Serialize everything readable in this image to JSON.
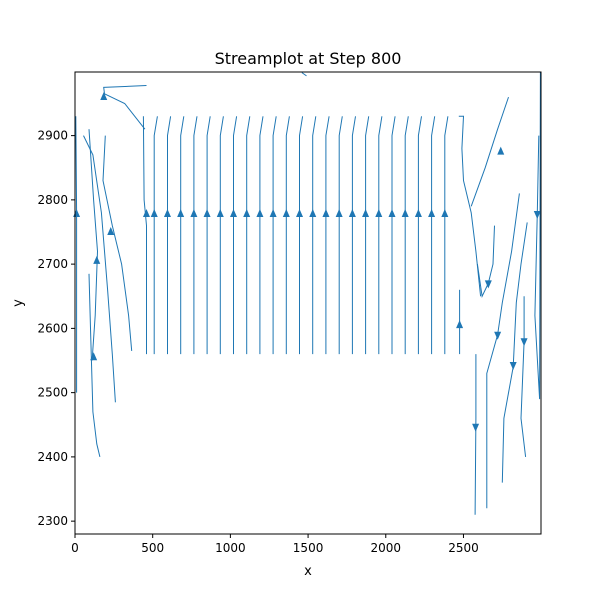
{
  "chart_data": {
    "type": "streamplot",
    "title": "Streamplot at Step 800",
    "xlabel": "x",
    "ylabel": "y",
    "xlim": [
      0,
      2999
    ],
    "ylim": [
      2280,
      2999
    ],
    "x_ticks": [
      0,
      500,
      1000,
      1500,
      2000,
      2500
    ],
    "x_tick_labels": [
      "0",
      "500",
      "1000",
      "1500",
      "2000",
      "2500"
    ],
    "y_ticks": [
      2300,
      2400,
      2500,
      2600,
      2700,
      2800,
      2900
    ],
    "y_tick_labels": [
      "2300",
      "2400",
      "2500",
      "2600",
      "2700",
      "2800",
      "2900"
    ],
    "grid": false,
    "line_color": "#1f77b4",
    "streamlines": [
      {
        "points": [
          [
            460,
            2560
          ],
          [
            460,
            2760
          ],
          [
            445,
            2800
          ],
          [
            440,
            2930
          ]
        ],
        "arrow_at": [
          460,
          2778
        ],
        "dir": "up"
      },
      {
        "points": [
          [
            510,
            2560
          ],
          [
            510,
            2900
          ],
          [
            530,
            2930
          ]
        ],
        "arrow_at": [
          510,
          2778
        ],
        "dir": "up"
      },
      {
        "points": [
          [
            595,
            2560
          ],
          [
            595,
            2900
          ],
          [
            615,
            2930
          ]
        ],
        "arrow_at": [
          595,
          2778
        ],
        "dir": "up"
      },
      {
        "points": [
          [
            680,
            2560
          ],
          [
            680,
            2900
          ],
          [
            700,
            2930
          ]
        ],
        "arrow_at": [
          680,
          2778
        ],
        "dir": "up"
      },
      {
        "points": [
          [
            765,
            2560
          ],
          [
            765,
            2900
          ],
          [
            785,
            2930
          ]
        ],
        "arrow_at": [
          765,
          2778
        ],
        "dir": "up"
      },
      {
        "points": [
          [
            850,
            2560
          ],
          [
            850,
            2900
          ],
          [
            870,
            2930
          ]
        ],
        "arrow_at": [
          850,
          2778
        ],
        "dir": "up"
      },
      {
        "points": [
          [
            935,
            2560
          ],
          [
            935,
            2900
          ],
          [
            955,
            2930
          ]
        ],
        "arrow_at": [
          935,
          2778
        ],
        "dir": "up"
      },
      {
        "points": [
          [
            1020,
            2560
          ],
          [
            1020,
            2900
          ],
          [
            1040,
            2930
          ]
        ],
        "arrow_at": [
          1020,
          2778
        ],
        "dir": "up"
      },
      {
        "points": [
          [
            1105,
            2560
          ],
          [
            1105,
            2900
          ],
          [
            1125,
            2930
          ]
        ],
        "arrow_at": [
          1105,
          2778
        ],
        "dir": "up"
      },
      {
        "points": [
          [
            1190,
            2560
          ],
          [
            1190,
            2900
          ],
          [
            1210,
            2930
          ]
        ],
        "arrow_at": [
          1190,
          2778
        ],
        "dir": "up"
      },
      {
        "points": [
          [
            1275,
            2560
          ],
          [
            1275,
            2900
          ],
          [
            1295,
            2930
          ]
        ],
        "arrow_at": [
          1275,
          2778
        ],
        "dir": "up"
      },
      {
        "points": [
          [
            1360,
            2560
          ],
          [
            1360,
            2900
          ],
          [
            1380,
            2930
          ]
        ],
        "arrow_at": [
          1360,
          2778
        ],
        "dir": "up"
      },
      {
        "points": [
          [
            1445,
            2560
          ],
          [
            1445,
            2900
          ],
          [
            1465,
            2930
          ]
        ],
        "arrow_at": [
          1445,
          2778
        ],
        "dir": "up"
      },
      {
        "points": [
          [
            1530,
            2560
          ],
          [
            1530,
            2900
          ],
          [
            1550,
            2930
          ]
        ],
        "arrow_at": [
          1530,
          2778
        ],
        "dir": "up"
      },
      {
        "points": [
          [
            1615,
            2560
          ],
          [
            1615,
            2900
          ],
          [
            1635,
            2930
          ]
        ],
        "arrow_at": [
          1615,
          2778
        ],
        "dir": "up"
      },
      {
        "points": [
          [
            1700,
            2560
          ],
          [
            1700,
            2900
          ],
          [
            1720,
            2930
          ]
        ],
        "arrow_at": [
          1700,
          2778
        ],
        "dir": "up"
      },
      {
        "points": [
          [
            1785,
            2560
          ],
          [
            1785,
            2900
          ],
          [
            1805,
            2930
          ]
        ],
        "arrow_at": [
          1785,
          2778
        ],
        "dir": "up"
      },
      {
        "points": [
          [
            1870,
            2560
          ],
          [
            1870,
            2900
          ],
          [
            1890,
            2930
          ]
        ],
        "arrow_at": [
          1870,
          2778
        ],
        "dir": "up"
      },
      {
        "points": [
          [
            1955,
            2560
          ],
          [
            1955,
            2900
          ],
          [
            1975,
            2930
          ]
        ],
        "arrow_at": [
          1955,
          2778
        ],
        "dir": "up"
      },
      {
        "points": [
          [
            2040,
            2560
          ],
          [
            2040,
            2900
          ],
          [
            2060,
            2930
          ]
        ],
        "arrow_at": [
          2040,
          2778
        ],
        "dir": "up"
      },
      {
        "points": [
          [
            2125,
            2560
          ],
          [
            2125,
            2900
          ],
          [
            2145,
            2930
          ]
        ],
        "arrow_at": [
          2125,
          2778
        ],
        "dir": "up"
      },
      {
        "points": [
          [
            2210,
            2560
          ],
          [
            2210,
            2900
          ],
          [
            2230,
            2930
          ]
        ],
        "arrow_at": [
          2210,
          2778
        ],
        "dir": "up"
      },
      {
        "points": [
          [
            2295,
            2560
          ],
          [
            2295,
            2900
          ],
          [
            2315,
            2930
          ]
        ],
        "arrow_at": [
          2295,
          2778
        ],
        "dir": "up"
      },
      {
        "points": [
          [
            2380,
            2560
          ],
          [
            2380,
            2900
          ],
          [
            2400,
            2930
          ]
        ],
        "arrow_at": [
          2380,
          2778
        ],
        "dir": "up"
      },
      {
        "points": [
          [
            2475,
            2560
          ],
          [
            2475,
            2660
          ]
        ],
        "arrow_at": [
          2475,
          2605
        ],
        "dir": "up"
      },
      {
        "points": [
          [
            2470,
            2930
          ],
          [
            2500,
            2930
          ],
          [
            2490,
            2880
          ],
          [
            2500,
            2830
          ],
          [
            2550,
            2780
          ],
          [
            2580,
            2720
          ],
          [
            2610,
            2650
          ]
        ],
        "arrow_at": [
          2610,
          2650
        ],
        "dir": "none"
      },
      {
        "points": [
          [
            10,
            2500
          ],
          [
            10,
            2780
          ],
          [
            5,
            2930
          ]
        ],
        "arrow_at": [
          10,
          2778
        ],
        "dir": "up"
      },
      {
        "points": [
          [
            90,
            2685
          ],
          [
            100,
            2600
          ],
          [
            115,
            2470
          ],
          [
            140,
            2420
          ],
          [
            160,
            2400
          ]
        ],
        "arrow_at": [
          120,
          2555
        ],
        "dir": "up"
      },
      {
        "points": [
          [
            110,
            2550
          ],
          [
            130,
            2620
          ],
          [
            145,
            2720
          ],
          [
            120,
            2800
          ],
          [
            90,
            2910
          ]
        ],
        "arrow_at": [
          140,
          2705
        ],
        "dir": "up"
      },
      {
        "points": [
          [
            260,
            2485
          ],
          [
            240,
            2560
          ],
          [
            210,
            2660
          ],
          [
            170,
            2780
          ],
          [
            115,
            2870
          ],
          [
            55,
            2900
          ]
        ],
        "arrow_at": [
          230,
          2750
        ],
        "dir": "up"
      },
      {
        "points": [
          [
            365,
            2565
          ],
          [
            345,
            2620
          ],
          [
            300,
            2700
          ],
          [
            240,
            2760
          ],
          [
            180,
            2830
          ],
          [
            195,
            2900
          ]
        ],
        "arrow_at": [
          200,
          2810
        ],
        "dir": "none"
      },
      {
        "points": [
          [
            450,
            2910
          ],
          [
            320,
            2950
          ],
          [
            190,
            2965
          ],
          [
            185,
            2975
          ],
          [
            460,
            2978
          ]
        ],
        "arrow_at": [
          185,
          2960
        ],
        "dir": "up"
      },
      {
        "points": [
          [
            1490,
            2993
          ],
          [
            1460,
            2998
          ]
        ],
        "arrow_at": [
          1490,
          2993
        ],
        "dir": "none"
      },
      {
        "points": [
          [
            2550,
            2790
          ],
          [
            2640,
            2850
          ],
          [
            2720,
            2910
          ],
          [
            2790,
            2960
          ]
        ],
        "arrow_at": [
          2740,
          2875
        ],
        "dir": "up"
      },
      {
        "points": [
          [
            2700,
            2760
          ],
          [
            2690,
            2700
          ],
          [
            2660,
            2670
          ],
          [
            2620,
            2650
          ],
          [
            2590,
            2700
          ]
        ],
        "arrow_at": [
          2660,
          2670
        ],
        "dir": "down"
      },
      {
        "points": [
          [
            2860,
            2810
          ],
          [
            2810,
            2720
          ],
          [
            2750,
            2640
          ],
          [
            2720,
            2590
          ],
          [
            2650,
            2530
          ],
          [
            2650,
            2320
          ]
        ],
        "arrow_at": [
          2720,
          2590
        ],
        "dir": "down"
      },
      {
        "points": [
          [
            2580,
            2560
          ],
          [
            2580,
            2460
          ],
          [
            2575,
            2310
          ]
        ],
        "arrow_at": [
          2578,
          2447
        ],
        "dir": "down"
      },
      {
        "points": [
          [
            2910,
            2765
          ],
          [
            2870,
            2700
          ],
          [
            2840,
            2640
          ],
          [
            2820,
            2540
          ],
          [
            2760,
            2460
          ],
          [
            2750,
            2360
          ]
        ],
        "arrow_at": [
          2820,
          2543
        ],
        "dir": "down"
      },
      {
        "points": [
          [
            2890,
            2650
          ],
          [
            2890,
            2580
          ],
          [
            2870,
            2460
          ],
          [
            2900,
            2400
          ]
        ],
        "arrow_at": [
          2890,
          2580
        ],
        "dir": "down"
      },
      {
        "points": [
          [
            2985,
            2900
          ],
          [
            2975,
            2780
          ],
          [
            2960,
            2620
          ],
          [
            2990,
            2490
          ],
          [
            2995,
            2999
          ]
        ],
        "arrow_at": [
          2975,
          2778
        ],
        "dir": "down"
      }
    ]
  }
}
